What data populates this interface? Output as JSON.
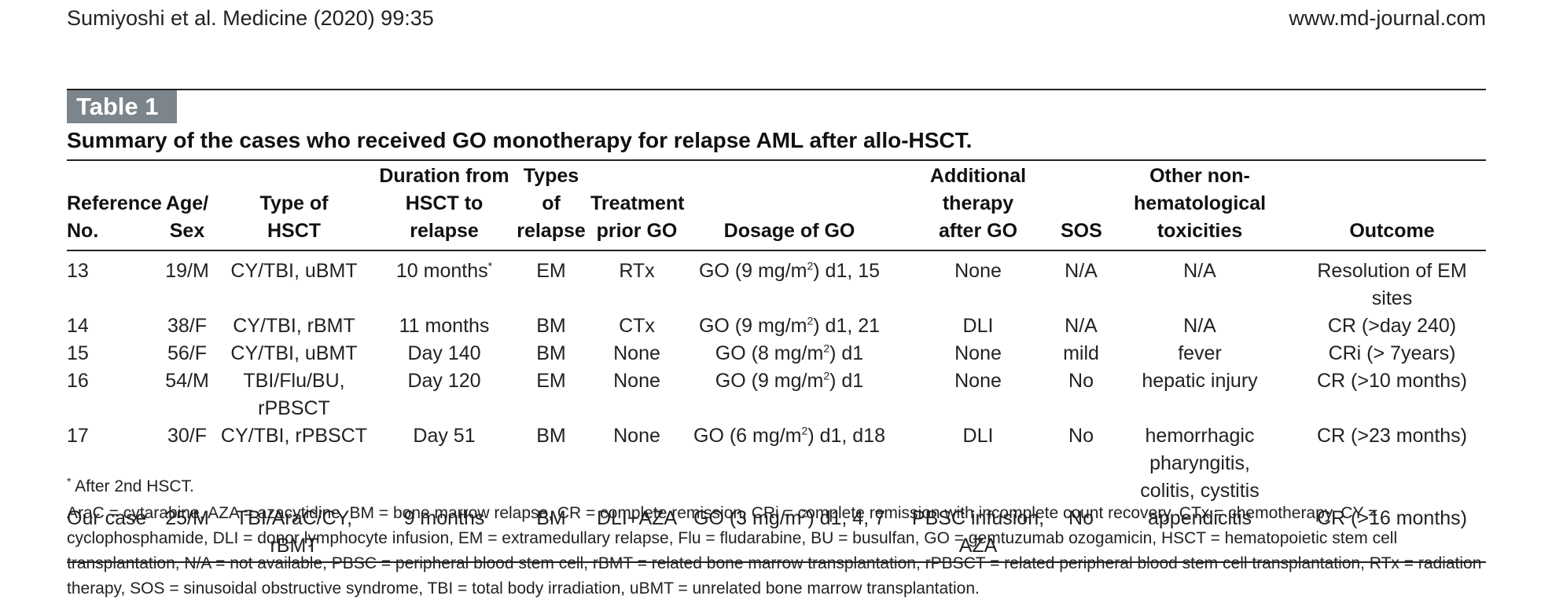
{
  "header": {
    "citation": "Sumiyoshi et al. Medicine (2020) 99:35",
    "url": "www.md-journal.com"
  },
  "table": {
    "label": "Table 1",
    "caption": "Summary of the cases who received GO monotherapy for relapse AML after allo-HSCT.",
    "columns": [
      "Reference\nNo.",
      "Age/\nSex",
      "Type of\nHSCT",
      "Duration from\nHSCT to\nrelapse",
      "Types of\nrelapse",
      "Treatment\nprior GO",
      "Dosage of GO",
      "Additional\ntherapy\nafter GO",
      "SOS",
      "Other non-\nhematological\ntoxicities",
      "Outcome"
    ],
    "rows": [
      {
        "ref": "13",
        "age_sex": "19/M",
        "hsct": "CY/TBI, uBMT",
        "duration": "10 months",
        "duration_sup": "*",
        "relapse": "EM",
        "prior": "RTx",
        "dose_pre": "GO (9 mg/m",
        "dose_sup": "2",
        "dose_post": ") d1, 15",
        "additional": "None",
        "sos": "N/A",
        "toxicities": "N/A",
        "outcome": "Resolution of EM sites"
      },
      {
        "ref": "14",
        "age_sex": "38/F",
        "hsct": "CY/TBI, rBMT",
        "duration": "11 months",
        "duration_sup": "",
        "relapse": "BM",
        "prior": "CTx",
        "dose_pre": "GO (9 mg/m",
        "dose_sup": "2",
        "dose_post": ") d1, 21",
        "additional": "DLI",
        "sos": "N/A",
        "toxicities": "N/A",
        "outcome": "CR (>day 240)"
      },
      {
        "ref": "15",
        "age_sex": "56/F",
        "hsct": "CY/TBI, uBMT",
        "duration": "Day 140",
        "duration_sup": "",
        "relapse": "BM",
        "prior": "None",
        "dose_pre": "GO (8 mg/m",
        "dose_sup": "2",
        "dose_post": ") d1",
        "additional": "None",
        "sos": "mild",
        "toxicities": "fever",
        "outcome": "CRi (> 7years)"
      },
      {
        "ref": "16",
        "age_sex": "54/M",
        "hsct": "TBI/Flu/BU, rPBSCT",
        "duration": "Day 120",
        "duration_sup": "",
        "relapse": "EM",
        "prior": "None",
        "dose_pre": "GO (9 mg/m",
        "dose_sup": "2",
        "dose_post": ") d1",
        "additional": "None",
        "sos": "No",
        "toxicities": "hepatic injury",
        "outcome": "CR (>10 months)"
      },
      {
        "ref": "17",
        "age_sex": "30/F",
        "hsct": "CY/TBI, rPBSCT",
        "duration": "Day 51",
        "duration_sup": "",
        "relapse": "BM",
        "prior": "None",
        "dose_pre": "GO (6 mg/m",
        "dose_sup": "2",
        "dose_post": ") d1, d18",
        "additional": "DLI",
        "sos": "No",
        "toxicities": "hemorrhagic pharyngitis,\ncolitis, cystitis",
        "outcome": "CR (>23 months)"
      },
      {
        "ref": "Our case",
        "age_sex": "25/M",
        "hsct": "TBI/AraC/CY, rBMT",
        "duration": "9 months",
        "duration_sup": "",
        "relapse": "BM",
        "prior": "DLI+AZA",
        "dose_pre": "GO (3 mg/m",
        "dose_sup": "2",
        "dose_post": ") d1, 4, 7",
        "additional": "PBSC infusion, AZA",
        "sos": "No",
        "toxicities": "appendicitis",
        "outcome": "CR (>16 months)"
      }
    ]
  },
  "footnotes": {
    "asterisk_mark": "*",
    "asterisk_note": "After 2nd HSCT.",
    "abbreviations": "AraC = cytarabine, AZA = azacytidine, BM = bone marrow relapse, CR = complete remission, CRi = complete remission with incomplete count recovery, CTx = chemotherapy, CY = cyclophosphamide, DLI = donor lymphocyte infusion, EM = extramedullary relapse, Flu = fludarabine, BU = busulfan, GO = gemtuzumab ozogamicin, HSCT = hematopoietic stem cell transplantation, N/A = not available, PBSC = peripheral blood stem cell, rBMT = related bone marrow transplantation, rPBSCT = related peripheral blood stem cell transplantation, RTx = radiation therapy, SOS = sinusoidal obstructive syndrome, TBI = total body irradiation, uBMT = unrelated bone marrow transplantation."
  }
}
